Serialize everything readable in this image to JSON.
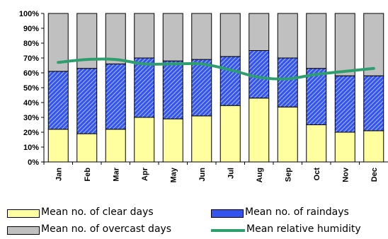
{
  "chart_data": {
    "type": "bar",
    "stacked": true,
    "categories": [
      "Jan",
      "Feb",
      "Mar",
      "Apr",
      "May",
      "Jun",
      "Jul",
      "Aug",
      "Sep",
      "Oct",
      "Nov",
      "Dec"
    ],
    "series": [
      {
        "name": "Mean no. of clear days",
        "kind": "bar",
        "color": "#ffffa0",
        "values": [
          22,
          19,
          22,
          30,
          29,
          31,
          38,
          43,
          37,
          25,
          20,
          21
        ]
      },
      {
        "name": "Mean no. of raindays",
        "kind": "bar",
        "color": "#3355ee",
        "values": [
          39,
          44,
          44,
          40,
          39,
          38,
          33,
          32,
          33,
          38,
          38,
          37
        ]
      },
      {
        "name": "Mean no. of overcast days",
        "kind": "bar",
        "color": "#c0c0c0",
        "values": [
          39,
          37,
          34,
          30,
          32,
          31,
          29,
          25,
          30,
          37,
          42,
          42
        ]
      },
      {
        "name": "Mean relative humidity",
        "kind": "line",
        "color": "#2e9e6e",
        "values": [
          67,
          69,
          69,
          66,
          66,
          66,
          62,
          57,
          56,
          59,
          61,
          63
        ]
      }
    ],
    "ylim": [
      0,
      100
    ],
    "yticks": [
      "0%",
      "10%",
      "20%",
      "30%",
      "40%",
      "50%",
      "60%",
      "70%",
      "80%",
      "90%",
      "100%"
    ],
    "grid": false,
    "legend_position": "bottom"
  }
}
